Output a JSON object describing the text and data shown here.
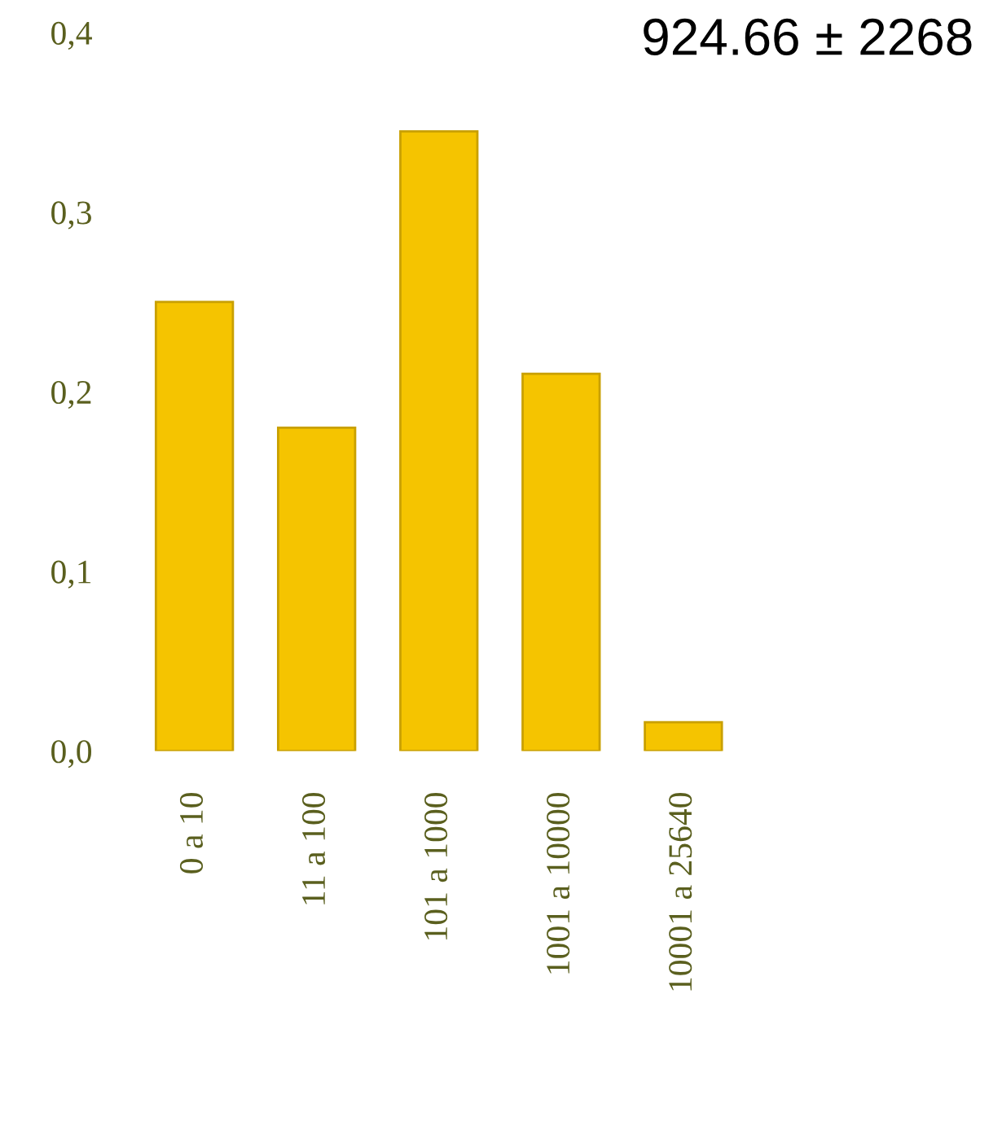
{
  "chart_data": {
    "type": "bar",
    "categories": [
      "0 a 10",
      "11 a 100",
      "101 a 1000",
      "1001 a 10000",
      "10001 a 25640"
    ],
    "values": [
      0.25,
      0.18,
      0.345,
      0.21,
      0.016
    ],
    "color": "#f5c400",
    "ylim": [
      0,
      0.4
    ],
    "yticks": [
      {
        "value": 0,
        "label": "0,0"
      },
      {
        "value": 0.1,
        "label": "0,1"
      },
      {
        "value": 0.2,
        "label": "0,2"
      },
      {
        "value": 0.3,
        "label": "0,3"
      },
      {
        "value": 0.4,
        "label": "0,4"
      }
    ],
    "grid": false,
    "legend": false,
    "annotations": [
      "924.66 ± 2268"
    ]
  }
}
